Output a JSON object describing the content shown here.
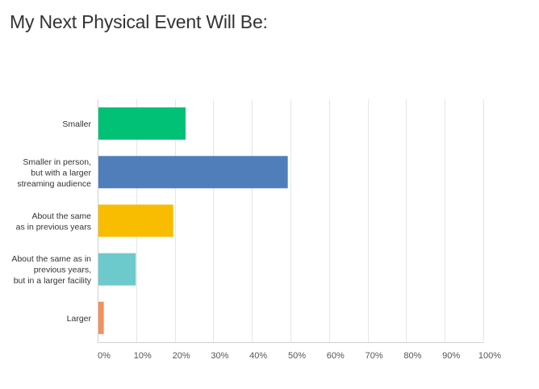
{
  "chart_data": {
    "type": "bar",
    "orientation": "horizontal",
    "title": "My Next Physical Event Will Be:",
    "categories": [
      [
        "Smaller"
      ],
      [
        "Smaller in person,",
        "but with a larger",
        "streaming audience"
      ],
      [
        "About the same",
        "as in previous years"
      ],
      [
        "About the same as in",
        "previous years,",
        "but in a larger facility"
      ],
      [
        "Larger"
      ]
    ],
    "values": [
      22.8,
      49.3,
      19.6,
      9.9,
      1.6
    ],
    "colors": [
      "#00c176",
      "#4f7ebb",
      "#f8bd00",
      "#6ccacc",
      "#f3905b"
    ],
    "x_ticks": [
      "0%",
      "10%",
      "20%",
      "30%",
      "40%",
      "50%",
      "60%",
      "70%",
      "80%",
      "90%",
      "100%"
    ],
    "xlim": [
      0,
      100
    ],
    "grid": true,
    "legend": "none"
  }
}
